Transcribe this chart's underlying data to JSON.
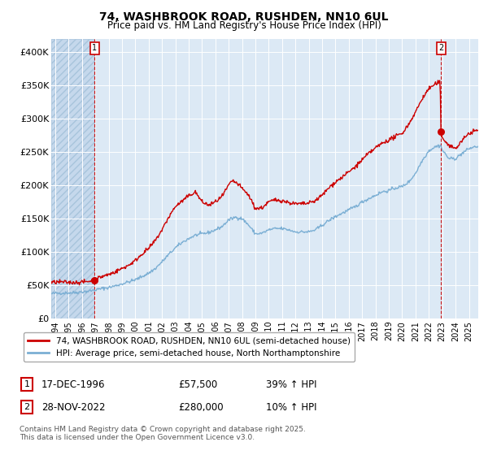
{
  "title": "74, WASHBROOK ROAD, RUSHDEN, NN10 6UL",
  "subtitle": "Price paid vs. HM Land Registry's House Price Index (HPI)",
  "ylim": [
    0,
    420000
  ],
  "xlim_start": 1993.7,
  "xlim_end": 2025.7,
  "bg_color": "#dce9f5",
  "red_color": "#cc0000",
  "blue_color": "#7bafd4",
  "legend_label1": "74, WASHBROOK ROAD, RUSHDEN, NN10 6UL (semi-detached house)",
  "legend_label2": "HPI: Average price, semi-detached house, North Northamptonshire",
  "marker1_date": 1996.96,
  "marker1_price": 57500,
  "marker2_date": 2022.9,
  "marker2_price": 280000,
  "hatch_end": 1996.96,
  "yticks": [
    0,
    50000,
    100000,
    150000,
    200000,
    250000,
    300000,
    350000,
    400000
  ],
  "ytick_labels": [
    "£0",
    "£50K",
    "£100K",
    "£150K",
    "£200K",
    "£250K",
    "£300K",
    "£350K",
    "£400K"
  ],
  "footer": "Contains HM Land Registry data © Crown copyright and database right 2025.\nThis data is licensed under the Open Government Licence v3.0."
}
